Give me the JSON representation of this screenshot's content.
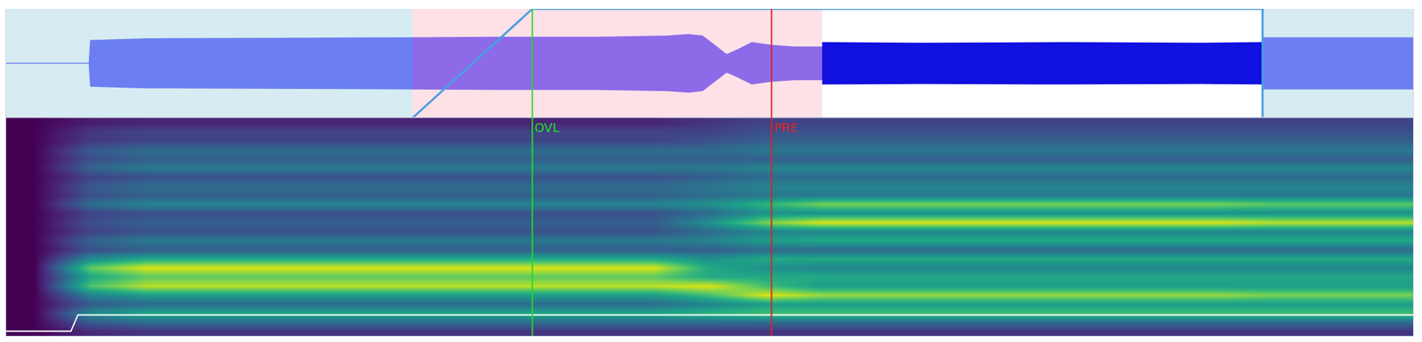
{
  "chart_data": [
    {
      "type": "area",
      "xlim": [
        0,
        100
      ],
      "ylim": [
        -1,
        1
      ],
      "xticks": [],
      "yticks": [],
      "grid": false,
      "tick_labels": false,
      "regions": [
        {
          "start": 0,
          "end": 28.9,
          "color": "#d6ecf2"
        },
        {
          "start": 28.9,
          "end": 58,
          "color": "#fde1e7"
        },
        {
          "start": 58,
          "end": 89.3,
          "color": "#ffffff"
        },
        {
          "start": 89.3,
          "end": 100,
          "color": "#d6ecf2"
        }
      ],
      "series": [
        {
          "color": "#6b7ff2",
          "x": [
            0,
            5.9,
            6.0,
            10,
            20,
            28.9
          ],
          "values": [
            0,
            0,
            0.42,
            0.45,
            0.46,
            0.47
          ]
        },
        {
          "color": "#8c6ae8",
          "x": [
            28.9,
            35,
            42,
            47,
            48.5,
            49.5,
            50.5,
            51.2,
            52,
            53,
            54.4,
            56,
            58
          ],
          "values": [
            0.47,
            0.48,
            0.48,
            0.5,
            0.53,
            0.5,
            0.3,
            0.16,
            0.25,
            0.38,
            0.33,
            0.3,
            0.3
          ]
        },
        {
          "color": "#1010e0",
          "x": [
            58,
            65,
            75,
            85,
            89.3
          ],
          "values": [
            0.38,
            0.37,
            0.38,
            0.37,
            0.38
          ]
        },
        {
          "color": "#6b7ff2",
          "x": [
            89.3,
            95,
            100
          ],
          "values": [
            0.47,
            0.47,
            0.47
          ]
        }
      ],
      "envelope": {
        "color": "#4a9fe0",
        "x": [
          28.9,
          37.4,
          89.3,
          89.3
        ],
        "values": [
          -1,
          1,
          1,
          -1
        ]
      },
      "markers": [
        {
          "x": 37.4,
          "label": "OVL",
          "color": "#22dd22"
        },
        {
          "x": 54.4,
          "label": "PRE",
          "color": "#dd2222"
        }
      ]
    },
    {
      "type": "heatmap",
      "xlim": [
        0,
        100
      ],
      "ylim": [
        -0.5,
        23.5
      ],
      "xticks": [],
      "yticks": [],
      "grid": false,
      "tick_labels": false,
      "zlim": [
        0,
        1
      ],
      "x": [
        2,
        6,
        10,
        14,
        18,
        22,
        26,
        30,
        34,
        38,
        42,
        46,
        50,
        54,
        58,
        62,
        66,
        70,
        74,
        78,
        82,
        86,
        90,
        94,
        98
      ],
      "y": [
        0,
        1,
        2,
        3,
        4,
        5,
        6,
        7,
        8,
        9,
        10,
        11,
        12,
        13,
        14,
        15,
        16,
        17,
        18,
        19,
        20,
        21,
        22,
        23
      ],
      "z": [
        [
          0,
          0.12,
          0.15,
          0.15,
          0.15,
          0.15,
          0.15,
          0.15,
          0.15,
          0.15,
          0.15,
          0.15,
          0.15,
          0.15,
          0.15,
          0.15,
          0.15,
          0.15,
          0.15,
          0.15,
          0.15,
          0.15,
          0.15,
          0.15,
          0.15
        ],
        [
          0,
          0.28,
          0.35,
          0.35,
          0.35,
          0.35,
          0.35,
          0.35,
          0.35,
          0.35,
          0.35,
          0.35,
          0.35,
          0.35,
          0.35,
          0.35,
          0.35,
          0.35,
          0.35,
          0.35,
          0.35,
          0.35,
          0.35,
          0.35,
          0.35
        ],
        [
          0,
          0.48,
          0.6,
          0.6,
          0.6,
          0.6,
          0.6,
          0.6,
          0.6,
          0.6,
          0.6,
          0.6,
          0.65,
          0.7,
          0.7,
          0.7,
          0.7,
          0.7,
          0.7,
          0.7,
          0.7,
          0.7,
          0.7,
          0.7,
          0.7
        ],
        [
          0,
          0.28,
          0.35,
          0.35,
          0.35,
          0.35,
          0.35,
          0.35,
          0.35,
          0.35,
          0.35,
          0.35,
          0.45,
          0.55,
          0.55,
          0.55,
          0.55,
          0.55,
          0.55,
          0.55,
          0.55,
          0.55,
          0.55,
          0.55,
          0.55
        ],
        [
          0,
          0.44,
          0.55,
          0.55,
          0.55,
          0.55,
          0.55,
          0.55,
          0.55,
          0.55,
          0.55,
          0.55,
          0.7,
          0.95,
          0.85,
          0.85,
          0.85,
          0.85,
          0.85,
          0.85,
          0.85,
          0.85,
          0.8,
          0.8,
          0.8
        ],
        [
          0,
          0.72,
          0.9,
          0.9,
          0.9,
          0.9,
          0.9,
          0.9,
          0.9,
          0.9,
          0.9,
          0.9,
          0.95,
          0.7,
          0.55,
          0.55,
          0.55,
          0.55,
          0.55,
          0.55,
          0.55,
          0.55,
          0.55,
          0.55,
          0.55
        ],
        [
          0,
          0.6,
          0.75,
          0.75,
          0.75,
          0.75,
          0.75,
          0.75,
          0.75,
          0.75,
          0.75,
          0.75,
          0.6,
          0.6,
          0.6,
          0.6,
          0.6,
          0.6,
          0.6,
          0.6,
          0.6,
          0.6,
          0.6,
          0.6,
          0.6
        ],
        [
          0,
          0.76,
          0.95,
          0.95,
          0.95,
          0.95,
          0.95,
          0.95,
          0.95,
          0.95,
          0.95,
          0.95,
          0.6,
          0.5,
          0.45,
          0.45,
          0.45,
          0.45,
          0.45,
          0.45,
          0.45,
          0.45,
          0.45,
          0.45,
          0.45
        ],
        [
          0,
          0.48,
          0.6,
          0.6,
          0.6,
          0.6,
          0.6,
          0.6,
          0.6,
          0.6,
          0.6,
          0.6,
          0.5,
          0.6,
          0.6,
          0.6,
          0.6,
          0.6,
          0.6,
          0.6,
          0.6,
          0.6,
          0.6,
          0.6,
          0.6
        ],
        [
          0,
          0.24,
          0.3,
          0.3,
          0.3,
          0.3,
          0.3,
          0.3,
          0.3,
          0.3,
          0.3,
          0.3,
          0.3,
          0.35,
          0.35,
          0.35,
          0.35,
          0.35,
          0.35,
          0.35,
          0.35,
          0.35,
          0.35,
          0.35,
          0.35
        ],
        [
          0,
          0.32,
          0.4,
          0.4,
          0.4,
          0.4,
          0.4,
          0.4,
          0.4,
          0.4,
          0.4,
          0.4,
          0.45,
          0.55,
          0.6,
          0.6,
          0.6,
          0.6,
          0.6,
          0.6,
          0.6,
          0.6,
          0.6,
          0.6,
          0.6
        ],
        [
          0,
          0.2,
          0.25,
          0.25,
          0.25,
          0.25,
          0.25,
          0.25,
          0.25,
          0.25,
          0.25,
          0.25,
          0.35,
          0.45,
          0.45,
          0.45,
          0.45,
          0.45,
          0.45,
          0.45,
          0.45,
          0.45,
          0.45,
          0.45,
          0.45
        ],
        [
          0,
          0.24,
          0.3,
          0.3,
          0.3,
          0.3,
          0.3,
          0.3,
          0.3,
          0.3,
          0.3,
          0.3,
          0.5,
          0.8,
          0.95,
          0.95,
          0.95,
          0.95,
          0.95,
          0.95,
          0.95,
          0.95,
          0.9,
          0.9,
          0.9
        ],
        [
          0,
          0.2,
          0.25,
          0.25,
          0.25,
          0.25,
          0.25,
          0.25,
          0.25,
          0.25,
          0.25,
          0.25,
          0.35,
          0.5,
          0.5,
          0.5,
          0.5,
          0.5,
          0.5,
          0.5,
          0.5,
          0.5,
          0.5,
          0.5,
          0.5
        ],
        [
          0,
          0.36,
          0.45,
          0.45,
          0.45,
          0.45,
          0.45,
          0.45,
          0.45,
          0.45,
          0.45,
          0.45,
          0.5,
          0.65,
          0.8,
          0.8,
          0.8,
          0.8,
          0.8,
          0.8,
          0.8,
          0.8,
          0.75,
          0.75,
          0.75
        ],
        [
          0,
          0.24,
          0.3,
          0.3,
          0.3,
          0.3,
          0.3,
          0.3,
          0.3,
          0.3,
          0.3,
          0.3,
          0.35,
          0.4,
          0.4,
          0.4,
          0.4,
          0.4,
          0.4,
          0.4,
          0.4,
          0.4,
          0.4,
          0.4,
          0.4
        ],
        [
          0,
          0.28,
          0.35,
          0.35,
          0.35,
          0.35,
          0.35,
          0.35,
          0.35,
          0.35,
          0.35,
          0.35,
          0.4,
          0.45,
          0.45,
          0.45,
          0.45,
          0.45,
          0.45,
          0.45,
          0.45,
          0.45,
          0.45,
          0.45,
          0.45
        ],
        [
          0,
          0.2,
          0.25,
          0.25,
          0.25,
          0.25,
          0.25,
          0.25,
          0.25,
          0.25,
          0.25,
          0.25,
          0.3,
          0.35,
          0.35,
          0.35,
          0.35,
          0.35,
          0.35,
          0.35,
          0.35,
          0.35,
          0.35,
          0.35,
          0.35
        ],
        [
          0,
          0.32,
          0.4,
          0.4,
          0.4,
          0.4,
          0.4,
          0.4,
          0.4,
          0.4,
          0.4,
          0.4,
          0.4,
          0.45,
          0.45,
          0.45,
          0.45,
          0.45,
          0.45,
          0.45,
          0.45,
          0.45,
          0.45,
          0.45,
          0.45
        ],
        [
          0,
          0.24,
          0.3,
          0.3,
          0.3,
          0.3,
          0.3,
          0.3,
          0.3,
          0.3,
          0.3,
          0.3,
          0.3,
          0.3,
          0.3,
          0.3,
          0.3,
          0.3,
          0.3,
          0.3,
          0.3,
          0.3,
          0.3,
          0.3,
          0.3
        ],
        [
          0,
          0.28,
          0.35,
          0.35,
          0.35,
          0.35,
          0.35,
          0.35,
          0.35,
          0.35,
          0.35,
          0.35,
          0.35,
          0.4,
          0.4,
          0.4,
          0.4,
          0.4,
          0.4,
          0.4,
          0.4,
          0.4,
          0.4,
          0.4,
          0.4
        ],
        [
          0,
          0.16,
          0.2,
          0.2,
          0.2,
          0.2,
          0.2,
          0.2,
          0.2,
          0.2,
          0.2,
          0.2,
          0.25,
          0.3,
          0.3,
          0.3,
          0.3,
          0.3,
          0.3,
          0.3,
          0.3,
          0.3,
          0.3,
          0.3,
          0.3
        ],
        [
          0,
          0.16,
          0.2,
          0.2,
          0.2,
          0.2,
          0.2,
          0.2,
          0.2,
          0.2,
          0.2,
          0.2,
          0.2,
          0.25,
          0.25,
          0.25,
          0.25,
          0.25,
          0.25,
          0.25,
          0.25,
          0.25,
          0.25,
          0.25,
          0.25
        ],
        [
          0,
          0.08,
          0.1,
          0.1,
          0.1,
          0.1,
          0.1,
          0.1,
          0.1,
          0.1,
          0.1,
          0.1,
          0.15,
          0.2,
          0.2,
          0.2,
          0.2,
          0.2,
          0.2,
          0.2,
          0.2,
          0.2,
          0.2,
          0.2,
          0.2
        ]
      ],
      "pitch": {
        "color": "#ffffff",
        "x": [
          0,
          4.6,
          5.1,
          100
        ],
        "values": [
          0,
          0,
          1.8,
          1.8
        ]
      }
    }
  ]
}
